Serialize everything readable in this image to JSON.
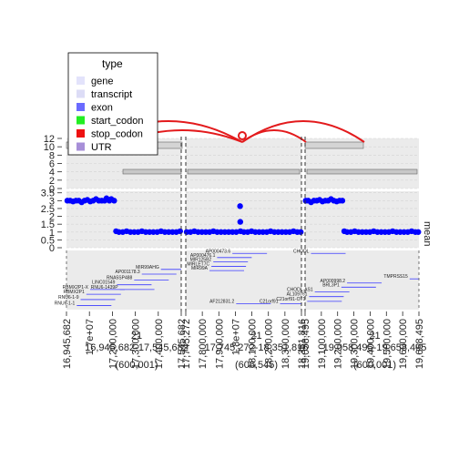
{
  "chart_data": {
    "type": "genome-track",
    "panels": [
      {
        "region": "chr21",
        "start": 16945682,
        "end": 17545682,
        "window": "16,945,682-17,545,682",
        "width_label": "(600,001)"
      },
      {
        "region": "chr21",
        "start": 17745272,
        "end": 18351816,
        "window": "17,745,272-18,351,816",
        "width_label": "(606,545)"
      },
      {
        "region": "chr21",
        "start": 19058495,
        "end": 19658495,
        "window": "19,058,495-19,658,495",
        "width_label": "(600,001)"
      }
    ],
    "chrom_label": "21",
    "x_tick_labels": [
      [
        "16,945,682",
        "1.7e+07",
        "17,200,000",
        "17,300,000",
        "17,400,000",
        "17,545,682"
      ],
      [
        "17,745,272",
        "17,800,000",
        "17,900,000",
        "1.8e+07",
        "18,100,000",
        "18,200,000",
        "18,300,000",
        "18,351,816"
      ],
      [
        "19,058,495",
        "19,100,000",
        "19,200,000",
        "19,300,000",
        "19,400,000",
        "19,500,000",
        "19,600,000",
        "19,658,495"
      ]
    ],
    "arc_track": {
      "ylabel": "",
      "yticks": [
        "12",
        "10",
        "8",
        "6",
        "4",
        "2",
        "0"
      ],
      "ylim": [
        0,
        12
      ]
    },
    "mean_track": {
      "ylabel": "mean",
      "yticks": [
        "3.5",
        "3",
        "2.5",
        "2",
        "1.5",
        "1",
        "0.5",
        "0"
      ],
      "ylim": [
        0,
        3.6
      ],
      "series": [
        {
          "panel": 0,
          "values": [
            [
              16950000,
              3.0
            ],
            [
              16965000,
              3.0
            ],
            [
              16980000,
              2.95
            ],
            [
              16995000,
              3.0
            ],
            [
              17010000,
              3.0
            ],
            [
              17025000,
              2.9
            ],
            [
              17040000,
              3.0
            ],
            [
              17055000,
              3.05
            ],
            [
              17070000,
              2.95
            ],
            [
              17085000,
              3.0
            ],
            [
              17100000,
              3.1
            ],
            [
              17115000,
              3.0
            ],
            [
              17130000,
              3.0
            ],
            [
              17145000,
              3.0
            ],
            [
              17155000,
              3.15
            ],
            [
              17170000,
              3.0
            ],
            [
              17180000,
              3.1
            ],
            [
              17195000,
              3.0
            ],
            [
              17205000,
              1.05
            ],
            [
              17220000,
              1.0
            ],
            [
              17240000,
              1.0
            ],
            [
              17260000,
              1.05
            ],
            [
              17280000,
              1.0
            ],
            [
              17300000,
              1.0
            ],
            [
              17320000,
              1.0
            ],
            [
              17340000,
              1.05
            ],
            [
              17360000,
              1.0
            ],
            [
              17380000,
              1.0
            ],
            [
              17400000,
              1.0
            ],
            [
              17420000,
              1.0
            ],
            [
              17440000,
              1.05
            ],
            [
              17460000,
              1.0
            ],
            [
              17480000,
              1.0
            ],
            [
              17500000,
              1.0
            ],
            [
              17520000,
              1.0
            ],
            [
              17540000,
              1.05
            ]
          ]
        },
        {
          "panel": 1,
          "values": [
            [
              17750000,
              1.0
            ],
            [
              17770000,
              1.0
            ],
            [
              17790000,
              1.05
            ],
            [
              17810000,
              1.0
            ],
            [
              17830000,
              1.0
            ],
            [
              17850000,
              1.0
            ],
            [
              17870000,
              1.0
            ],
            [
              17890000,
              1.05
            ],
            [
              17910000,
              1.0
            ],
            [
              17930000,
              1.0
            ],
            [
              17950000,
              1.0
            ],
            [
              17970000,
              1.0
            ],
            [
              17990000,
              1.0
            ],
            [
              18010000,
              1.0
            ],
            [
              18030000,
              2.65
            ],
            [
              18031000,
              1.65
            ],
            [
              18032000,
              1.05
            ],
            [
              18050000,
              1.0
            ],
            [
              18070000,
              1.0
            ],
            [
              18090000,
              1.05
            ],
            [
              18110000,
              1.0
            ],
            [
              18130000,
              1.0
            ],
            [
              18150000,
              1.0
            ],
            [
              18170000,
              1.0
            ],
            [
              18190000,
              1.05
            ],
            [
              18210000,
              1.0
            ],
            [
              18230000,
              1.0
            ],
            [
              18250000,
              1.0
            ],
            [
              18270000,
              1.0
            ],
            [
              18290000,
              1.0
            ],
            [
              18310000,
              1.05
            ],
            [
              18330000,
              1.0
            ],
            [
              18348000,
              1.0
            ]
          ]
        },
        {
          "panel": 2,
          "values": [
            [
              19062000,
              3.0
            ],
            [
              19075000,
              3.0
            ],
            [
              19090000,
              2.9
            ],
            [
              19105000,
              3.0
            ],
            [
              19120000,
              3.0
            ],
            [
              19135000,
              3.05
            ],
            [
              19150000,
              2.95
            ],
            [
              19165000,
              3.0
            ],
            [
              19180000,
              3.0
            ],
            [
              19195000,
              3.1
            ],
            [
              19210000,
              3.0
            ],
            [
              19225000,
              2.95
            ],
            [
              19240000,
              3.0
            ],
            [
              19255000,
              3.0
            ],
            [
              19265000,
              1.05
            ],
            [
              19280000,
              1.0
            ],
            [
              19300000,
              1.0
            ],
            [
              19320000,
              1.05
            ],
            [
              19340000,
              1.0
            ],
            [
              19360000,
              1.0
            ],
            [
              19380000,
              1.0
            ],
            [
              19400000,
              1.0
            ],
            [
              19420000,
              1.05
            ],
            [
              19440000,
              1.0
            ],
            [
              19460000,
              1.0
            ],
            [
              19480000,
              1.0
            ],
            [
              19500000,
              1.0
            ],
            [
              19520000,
              1.05
            ],
            [
              19540000,
              1.0
            ],
            [
              19560000,
              1.0
            ],
            [
              19580000,
              1.0
            ],
            [
              19600000,
              1.0
            ],
            [
              19620000,
              1.05
            ],
            [
              19640000,
              1.0
            ],
            [
              19655000,
              1.0
            ]
          ]
        }
      ]
    },
    "gene_labels": [
      {
        "panel": 0,
        "text": "RNU6-1-1",
        "x": 16990000,
        "level": 0.93
      },
      {
        "panel": 0,
        "text": "RNU6-1-9",
        "x": 17010000,
        "level": 0.83
      },
      {
        "panel": 0,
        "text": "RBMX2P1",
        "x": 17040000,
        "level": 0.74
      },
      {
        "panel": 0,
        "text": "RBMX2P1-X",
        "x": 17060000,
        "level": 0.66
      },
      {
        "panel": 0,
        "text": "LINC01549",
        "x": 17200000,
        "level": 0.58
      },
      {
        "panel": 0,
        "text": "RNU6-1439P",
        "x": 17215000,
        "level": 0.66
      },
      {
        "panel": 0,
        "text": "RNA5SP488",
        "x": 17290000,
        "level": 0.5
      },
      {
        "panel": 0,
        "text": "AP001178.3",
        "x": 17330000,
        "level": 0.4
      },
      {
        "panel": 0,
        "text": "MIR99AHG",
        "x": 17430000,
        "level": 0.32
      },
      {
        "panel": 1,
        "text": "AP000473.6",
        "x": 17980000,
        "level": 0.05
      },
      {
        "panel": 1,
        "text": "AP000476.1",
        "x": 17900000,
        "level": 0.12
      },
      {
        "panel": 1,
        "text": "MIR125B2",
        "x": 17880000,
        "level": 0.19
      },
      {
        "panel": 1,
        "text": "MIRLET7C",
        "x": 17870000,
        "level": 0.27
      },
      {
        "panel": 1,
        "text": "MIR99A",
        "x": 17860000,
        "level": 0.34
      },
      {
        "panel": 1,
        "text": "AF212831.2",
        "x": 18000000,
        "level": 0.9
      },
      {
        "panel": 1,
        "text": "C21orf91",
        "x": 18230000,
        "level": 0.9
      },
      {
        "panel": 2,
        "text": "CHODL",
        "x": 19080000,
        "level": 0.05
      },
      {
        "panel": 2,
        "text": "TMPRSS15",
        "x": 19600000,
        "level": 0.48
      },
      {
        "panel": 2,
        "text": "AP000998.2",
        "x": 19270000,
        "level": 0.55
      },
      {
        "panel": 2,
        "text": "BRL3P1",
        "x": 19240000,
        "level": 0.62
      },
      {
        "panel": 2,
        "text": "CHODL-AS1",
        "x": 19100000,
        "level": 0.7
      },
      {
        "panel": 2,
        "text": "AL109761",
        "x": 19070000,
        "level": 0.78
      },
      {
        "panel": 2,
        "text": "C21orf91-OT1",
        "x": 19060000,
        "level": 0.86
      }
    ],
    "legend": {
      "title": "type",
      "placement": "top-left",
      "items": [
        {
          "label": "gene",
          "color": "#e3e3fb"
        },
        {
          "label": "transcript",
          "color": "#dcdcf6"
        },
        {
          "label": "exon",
          "color": "#6a6aff"
        },
        {
          "label": "start_codon",
          "color": "#22ee22"
        },
        {
          "label": "stop_codon",
          "color": "#ee1111"
        },
        {
          "label": "UTR",
          "color": "#a78fd8"
        }
      ]
    },
    "colors": {
      "panel_bg": "#ebebeb",
      "arc": "#e31a1c",
      "points": "#0000ff",
      "gene_line": "#3b3bff",
      "dashed_boundary": "#333333"
    }
  }
}
